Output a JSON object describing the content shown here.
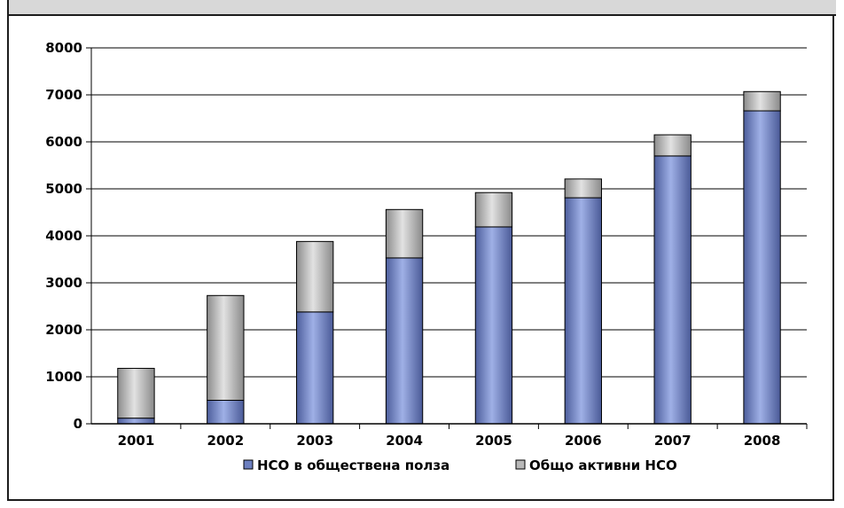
{
  "chart_data": {
    "type": "bar",
    "stacked": true,
    "categories": [
      "2001",
      "2002",
      "2003",
      "2004",
      "2005",
      "2006",
      "2007",
      "2008"
    ],
    "series": [
      {
        "name": "НСО в обществена полза",
        "values": [
          120,
          500,
          2380,
          3530,
          4190,
          4810,
          5700,
          6660
        ],
        "color": "#6c7fbf"
      },
      {
        "name": "Общо активни НСО",
        "values": [
          1060,
          2230,
          1500,
          1030,
          730,
          400,
          450,
          410
        ],
        "color": "#b8b8b8"
      }
    ],
    "title": "",
    "xlabel": "",
    "ylabel": "",
    "ylim": [
      0,
      8000
    ],
    "yticks": [
      "0",
      "1000",
      "2000",
      "3000",
      "4000",
      "5000",
      "6000",
      "7000",
      "8000"
    ],
    "grid": true,
    "legend": "bottom"
  }
}
